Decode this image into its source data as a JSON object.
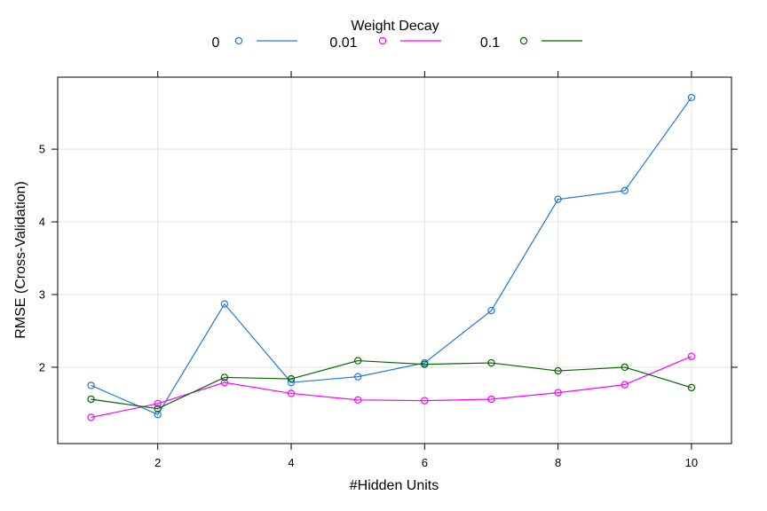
{
  "chart_data": {
    "type": "line",
    "xlabel": "#Hidden Units",
    "ylabel": "RMSE (Cross-Validation)",
    "xlim": [
      0.5,
      10.6
    ],
    "ylim": [
      0.95,
      5.99
    ],
    "x_ticks": [
      2,
      4,
      6,
      8,
      10
    ],
    "y_ticks": [
      2,
      3,
      4,
      5
    ],
    "grid": true,
    "legend": {
      "title": "Weight Decay",
      "placement": "top"
    },
    "x": [
      1,
      2,
      3,
      4,
      5,
      6,
      7,
      8,
      9,
      10
    ],
    "series": [
      {
        "name": "0",
        "color": "#1f78e0",
        "values": [
          1.75,
          1.35,
          2.87,
          1.79,
          1.87,
          2.06,
          2.78,
          4.31,
          4.43,
          5.71
        ]
      },
      {
        "name": "0.01",
        "color": "#ff00ff",
        "values": [
          1.31,
          1.5,
          1.79,
          1.64,
          1.55,
          1.54,
          1.56,
          1.65,
          1.76,
          2.15
        ]
      },
      {
        "name": "0.1",
        "color": "#006400",
        "values": [
          1.56,
          1.43,
          1.86,
          1.84,
          2.09,
          2.04,
          2.06,
          1.95,
          2.0,
          1.72
        ]
      }
    ]
  }
}
